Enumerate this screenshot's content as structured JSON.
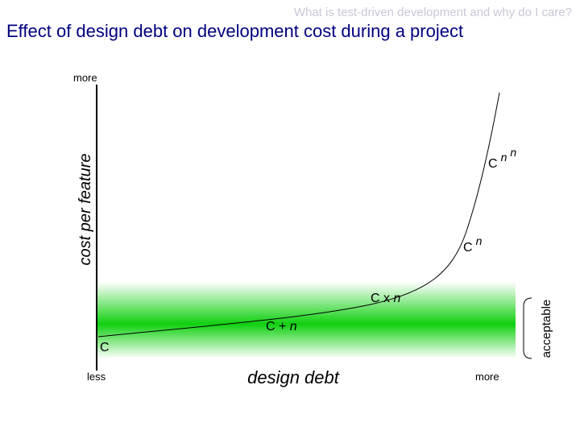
{
  "header": {
    "subtitle": "What is test-driven development and why do I care?",
    "title": "Effect of design debt on development cost during a project"
  },
  "y_axis": {
    "label": "cost per feature",
    "top": "more"
  },
  "x_axis": {
    "label": "design debt",
    "left": "less",
    "right": "more"
  },
  "band": {
    "label": "acceptable"
  },
  "curve_labels": {
    "constant": "C",
    "additive": {
      "text": "C +",
      "var": "n"
    },
    "multiplicative": {
      "text": "C x",
      "var": "n"
    },
    "power": {
      "base": "C",
      "exponent": "n"
    },
    "tower": {
      "base": "C",
      "exponent": "n",
      "exponent2": "n"
    }
  }
}
